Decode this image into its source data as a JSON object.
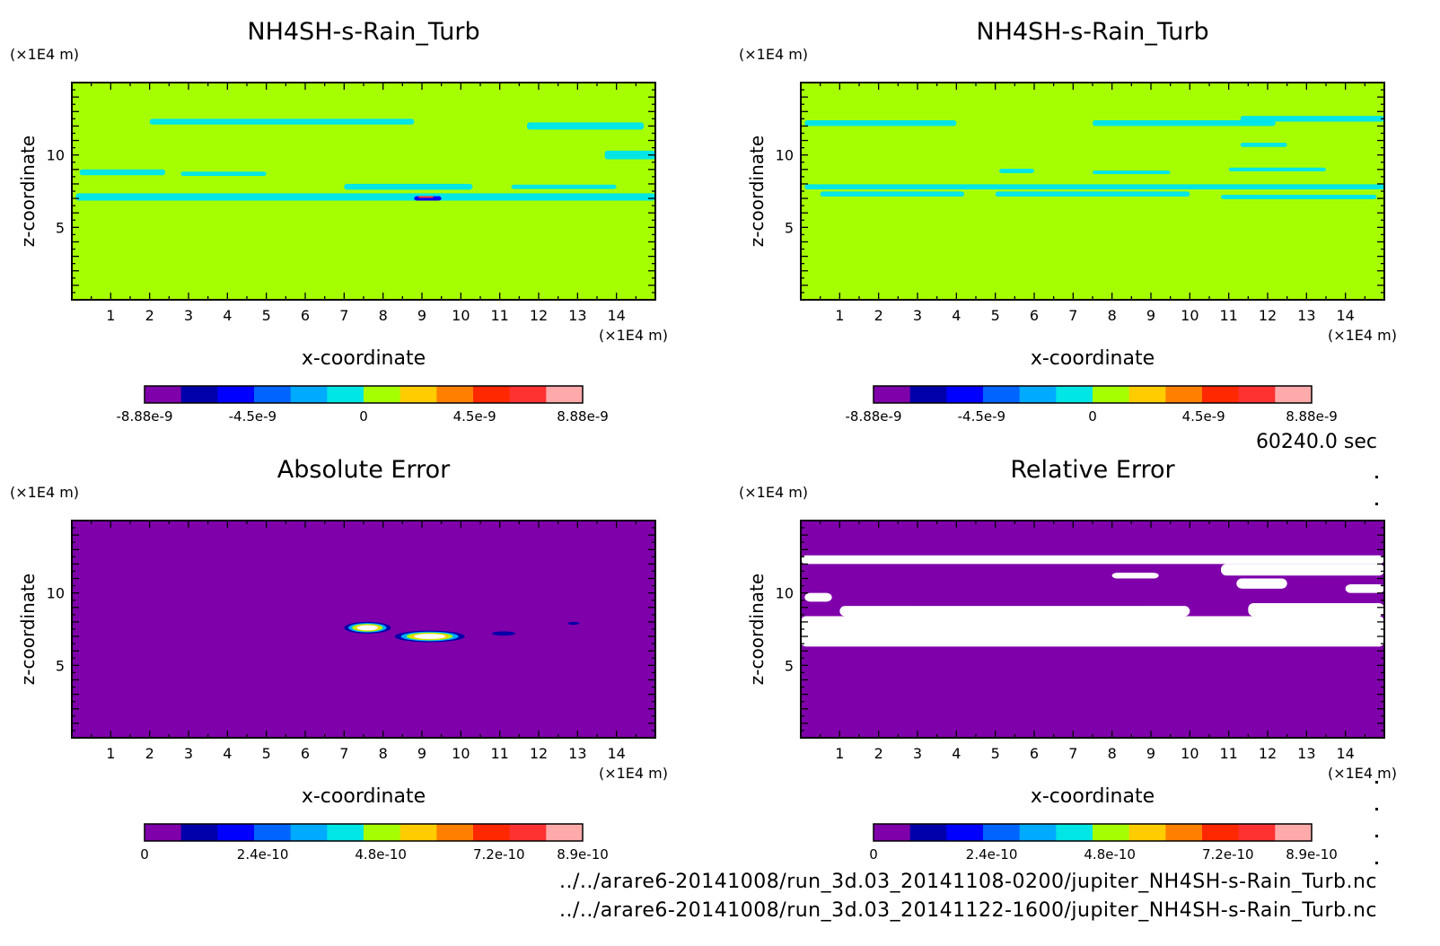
{
  "time_label": "60240.0 sec",
  "files": [
    "../../arare6-20141008/run_3d.03_20141108-0200/jupiter_NH4SH-s-Rain_Turb.nc",
    "../../arare6-20141008/run_3d.03_20141122-1600/jupiter_NH4SH-s-Rain_Turb.nc"
  ],
  "colors": {
    "background": "#ffffff",
    "field_base": "#a6ff00",
    "field_band": "#00e5e5",
    "error_base": "#7f00aa",
    "error_gap": "#ffffff"
  },
  "chart_data": [
    {
      "type": "heatmap",
      "title": "NH4SH-s-Rain_Turb",
      "xlabel": "x-coordinate",
      "ylabel": "z-coordinate",
      "x_unit": "(×1E4 m)",
      "y_unit": "(×1E4 m)",
      "xlim": [
        0,
        15
      ],
      "ylim": [
        0,
        15
      ],
      "xticks": [
        1,
        2,
        3,
        4,
        5,
        6,
        7,
        8,
        9,
        10,
        11,
        12,
        13,
        14
      ],
      "yticks": [
        5,
        10
      ],
      "colorbar": {
        "colors": [
          "#7f00aa",
          "#0000aa",
          "#0000ff",
          "#0064ff",
          "#00aaff",
          "#00e5e5",
          "#a6ff00",
          "#ffcc00",
          "#ff8000",
          "#ff2800",
          "#ff3232",
          "#ffaaaa"
        ],
        "tick_labels": [
          "-8.88e-9",
          "-4.5e-9",
          "0",
          "4.5e-9",
          "8.88e-9"
        ],
        "tick_values": [
          -8.88e-09,
          -4.5e-09,
          0,
          4.5e-09,
          8.88e-09
        ],
        "range": [
          -8.88e-09,
          8.88e-09
        ]
      },
      "base_color": "#a6ff00",
      "bands": [
        {
          "color": "#00e5e5",
          "y": 12.3,
          "x0": 2.0,
          "x1": 8.8,
          "th": 0.4
        },
        {
          "color": "#00e5e5",
          "y": 12.0,
          "x0": 11.7,
          "x1": 14.7,
          "th": 0.5
        },
        {
          "color": "#00e5e5",
          "y": 10.0,
          "x0": 13.7,
          "x1": 15.0,
          "th": 0.6
        },
        {
          "color": "#00e5e5",
          "y": 8.8,
          "x0": 0.2,
          "x1": 2.4,
          "th": 0.4
        },
        {
          "color": "#00e5e5",
          "y": 8.7,
          "x0": 2.8,
          "x1": 5.0,
          "th": 0.3
        },
        {
          "color": "#00e5e5",
          "y": 7.8,
          "x0": 7.0,
          "x1": 10.3,
          "th": 0.4
        },
        {
          "color": "#00e5e5",
          "y": 7.1,
          "x0": 0.1,
          "x1": 15.0,
          "th": 0.5
        },
        {
          "color": "#00e5e5",
          "y": 7.8,
          "x0": 11.3,
          "x1": 14.0,
          "th": 0.3
        },
        {
          "color": "#0000ff",
          "y": 7.0,
          "x0": 8.8,
          "x1": 9.5,
          "th": 0.3
        },
        {
          "color": "#ff3232",
          "y": 7.1,
          "x0": 8.9,
          "x1": 9.3,
          "th": 0.12
        }
      ]
    },
    {
      "type": "heatmap",
      "title": "NH4SH-s-Rain_Turb",
      "xlabel": "x-coordinate",
      "ylabel": "z-coordinate",
      "x_unit": "(×1E4 m)",
      "y_unit": "(×1E4 m)",
      "xlim": [
        0,
        15
      ],
      "ylim": [
        0,
        15
      ],
      "xticks": [
        1,
        2,
        3,
        4,
        5,
        6,
        7,
        8,
        9,
        10,
        11,
        12,
        13,
        14
      ],
      "yticks": [
        5,
        10
      ],
      "colorbar": {
        "colors": [
          "#7f00aa",
          "#0000aa",
          "#0000ff",
          "#0064ff",
          "#00aaff",
          "#00e5e5",
          "#a6ff00",
          "#ffcc00",
          "#ff8000",
          "#ff2800",
          "#ff3232",
          "#ffaaaa"
        ],
        "tick_labels": [
          "-8.88e-9",
          "-4.5e-9",
          "0",
          "4.5e-9",
          "8.88e-9"
        ],
        "tick_values": [
          -8.88e-09,
          -4.5e-09,
          0,
          4.5e-09,
          8.88e-09
        ],
        "range": [
          -8.88e-09,
          8.88e-09
        ]
      },
      "base_color": "#a6ff00",
      "bands": [
        {
          "color": "#00e5e5",
          "y": 12.2,
          "x0": 0.1,
          "x1": 4.0,
          "th": 0.4
        },
        {
          "color": "#00e5e5",
          "y": 12.2,
          "x0": 7.5,
          "x1": 12.2,
          "th": 0.4
        },
        {
          "color": "#00e5e5",
          "y": 12.5,
          "x0": 11.3,
          "x1": 15.0,
          "th": 0.4
        },
        {
          "color": "#00e5e5",
          "y": 10.7,
          "x0": 11.3,
          "x1": 12.5,
          "th": 0.3
        },
        {
          "color": "#00e5e5",
          "y": 9.0,
          "x0": 11.0,
          "x1": 13.5,
          "th": 0.25
        },
        {
          "color": "#00e5e5",
          "y": 8.9,
          "x0": 5.1,
          "x1": 6.0,
          "th": 0.3
        },
        {
          "color": "#00e5e5",
          "y": 8.8,
          "x0": 7.5,
          "x1": 9.5,
          "th": 0.25
        },
        {
          "color": "#00e5e5",
          "y": 7.8,
          "x0": 0.1,
          "x1": 15.0,
          "th": 0.35
        },
        {
          "color": "#00e5e5",
          "y": 7.3,
          "x0": 0.5,
          "x1": 4.2,
          "th": 0.35
        },
        {
          "color": "#00e5e5",
          "y": 7.3,
          "x0": 5.0,
          "x1": 10.0,
          "th": 0.35
        },
        {
          "color": "#00e5e5",
          "y": 7.1,
          "x0": 10.8,
          "x1": 14.8,
          "th": 0.3
        }
      ]
    },
    {
      "type": "heatmap",
      "title": "Absolute Error",
      "xlabel": "x-coordinate",
      "ylabel": "z-coordinate",
      "x_unit": "(×1E4 m)",
      "y_unit": "(×1E4 m)",
      "xlim": [
        0,
        15
      ],
      "ylim": [
        0,
        15
      ],
      "xticks": [
        1,
        2,
        3,
        4,
        5,
        6,
        7,
        8,
        9,
        10,
        11,
        12,
        13,
        14
      ],
      "yticks": [
        5,
        10
      ],
      "colorbar": {
        "colors": [
          "#7f00aa",
          "#0000aa",
          "#0000ff",
          "#0064ff",
          "#00aaff",
          "#00e5e5",
          "#a6ff00",
          "#ffcc00",
          "#ff8000",
          "#ff2800",
          "#ff3232",
          "#ffaaaa"
        ],
        "tick_labels": [
          "0",
          "2.4e-10",
          "4.8e-10",
          "7.2e-10",
          "8.9e-10"
        ],
        "tick_values": [
          0,
          2.4e-10,
          4.8e-10,
          7.2e-10,
          8.9e-10
        ],
        "range": [
          0,
          8.9e-10
        ]
      },
      "base_color": "#7f00aa",
      "blobs": [
        {
          "cx": 7.6,
          "cy": 7.6,
          "rx": 0.6,
          "ry": 0.4
        },
        {
          "cx": 9.2,
          "cy": 7.0,
          "rx": 0.9,
          "ry": 0.4
        },
        {
          "cx": 11.1,
          "cy": 7.2,
          "rx": 0.3,
          "ry": 0.15,
          "only": "#0000aa"
        },
        {
          "cx": 12.9,
          "cy": 7.9,
          "rx": 0.15,
          "ry": 0.1,
          "only": "#0000aa"
        }
      ]
    },
    {
      "type": "heatmap",
      "title": "Relative Error",
      "xlabel": "x-coordinate",
      "ylabel": "z-coordinate",
      "x_unit": "(×1E4 m)",
      "y_unit": "(×1E4 m)",
      "xlim": [
        0,
        15
      ],
      "ylim": [
        0,
        15
      ],
      "xticks": [
        1,
        2,
        3,
        4,
        5,
        6,
        7,
        8,
        9,
        10,
        11,
        12,
        13,
        14
      ],
      "yticks": [
        5,
        10
      ],
      "colorbar": {
        "colors": [
          "#7f00aa",
          "#0000aa",
          "#0000ff",
          "#0064ff",
          "#00aaff",
          "#00e5e5",
          "#a6ff00",
          "#ffcc00",
          "#ff8000",
          "#ff2800",
          "#ff3232",
          "#ffaaaa"
        ],
        "tick_labels": [
          "0",
          "2.4e-10",
          "4.8e-10",
          "7.2e-10",
          "8.9e-10"
        ],
        "tick_values": [
          0,
          2.4e-10,
          4.8e-10,
          7.2e-10,
          8.9e-10
        ],
        "range": [
          0,
          8.9e-10
        ]
      },
      "base_color": "#7f00aa",
      "gaps": [
        {
          "y0": 12.0,
          "y1": 12.6,
          "x0": 0.0,
          "x1": 15.0
        },
        {
          "y0": 11.2,
          "y1": 12.0,
          "x0": 10.8,
          "x1": 15.0
        },
        {
          "y0": 6.3,
          "y1": 8.4,
          "x0": 0.0,
          "x1": 15.0
        },
        {
          "y0": 8.4,
          "y1": 9.1,
          "x0": 1.0,
          "x1": 10.0
        },
        {
          "y0": 8.4,
          "y1": 9.3,
          "x0": 11.5,
          "x1": 15.0
        },
        {
          "y0": 10.3,
          "y1": 11.0,
          "x0": 11.2,
          "x1": 12.5
        },
        {
          "y0": 10.0,
          "y1": 10.6,
          "x0": 14.0,
          "x1": 15.0
        },
        {
          "y0": 9.4,
          "y1": 10.0,
          "x0": 0.1,
          "x1": 0.8
        },
        {
          "y0": 11.0,
          "y1": 11.4,
          "x0": 8.0,
          "x1": 9.2
        }
      ]
    }
  ]
}
